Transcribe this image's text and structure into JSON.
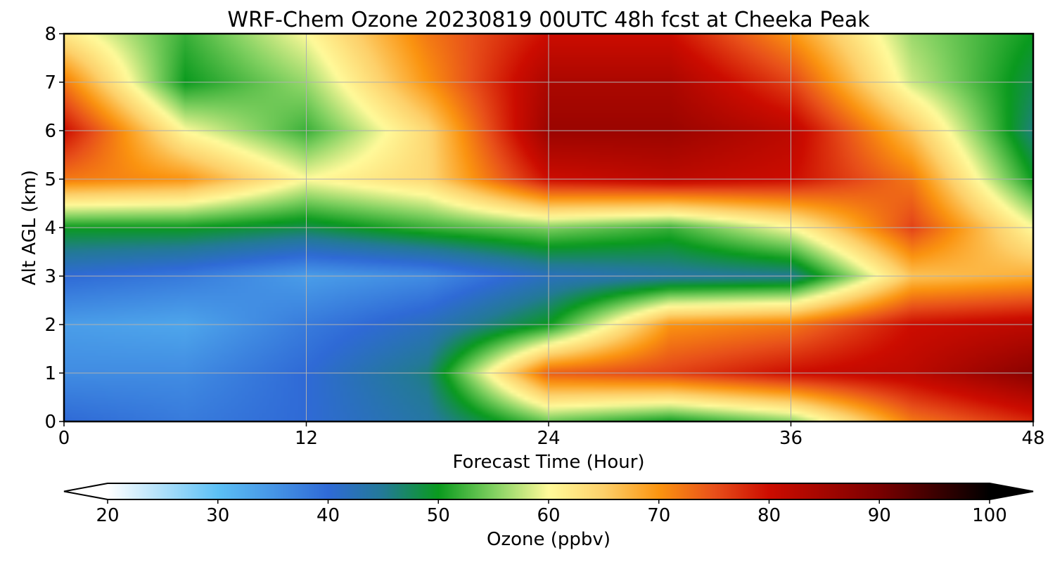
{
  "chart_data": {
    "type": "heatmap",
    "title": "WRF-Chem Ozone  20230819 00UTC 48h fcst at Cheeka Peak",
    "xlabel": "Forecast Time (Hour)",
    "ylabel": "Alt AGL (km)",
    "xlim": [
      0,
      48
    ],
    "ylim": [
      0,
      8
    ],
    "x_ticks": [
      0,
      12,
      24,
      36,
      48
    ],
    "y_ticks": [
      0,
      1,
      2,
      3,
      4,
      5,
      6,
      7,
      8
    ],
    "grid": true,
    "x": [
      0,
      6,
      12,
      18,
      24,
      30,
      36,
      42,
      48
    ],
    "y": [
      0,
      1,
      2,
      3,
      4,
      5,
      6,
      7,
      8
    ],
    "z": [
      [
        40,
        38,
        40,
        44,
        54,
        50,
        55,
        72,
        78
      ],
      [
        36,
        36,
        40,
        46,
        74,
        76,
        80,
        82,
        88
      ],
      [
        34,
        33,
        38,
        42,
        50,
        70,
        72,
        80,
        82
      ],
      [
        40,
        38,
        34,
        36,
        42,
        44,
        45,
        66,
        68
      ],
      [
        50,
        50,
        48,
        52,
        55,
        52,
        60,
        76,
        60
      ],
      [
        72,
        70,
        60,
        64,
        80,
        82,
        80,
        72,
        50
      ],
      [
        80,
        60,
        52,
        64,
        86,
        86,
        82,
        66,
        46
      ],
      [
        72,
        50,
        56,
        70,
        84,
        84,
        76,
        58,
        48
      ],
      [
        62,
        52,
        60,
        72,
        80,
        80,
        70,
        56,
        50
      ]
    ],
    "colorbar": {
      "label": "Ozone  (ppbv)",
      "min": 20,
      "max": 100,
      "ticks": [
        20,
        30,
        40,
        50,
        60,
        70,
        80,
        90,
        100
      ],
      "extend": "both",
      "stops": [
        {
          "v": 20,
          "c": "#ffffff"
        },
        {
          "v": 30,
          "c": "#5cc0f5"
        },
        {
          "v": 40,
          "c": "#2f6ad6"
        },
        {
          "v": 45,
          "c": "#237a96"
        },
        {
          "v": 50,
          "c": "#0a9a1e"
        },
        {
          "v": 55,
          "c": "#80d060"
        },
        {
          "v": 60,
          "c": "#fffa9a"
        },
        {
          "v": 65,
          "c": "#fdd06a"
        },
        {
          "v": 70,
          "c": "#fb9410"
        },
        {
          "v": 75,
          "c": "#e8501a"
        },
        {
          "v": 80,
          "c": "#cc0c00"
        },
        {
          "v": 90,
          "c": "#7a0000"
        },
        {
          "v": 100,
          "c": "#000000"
        }
      ]
    }
  }
}
